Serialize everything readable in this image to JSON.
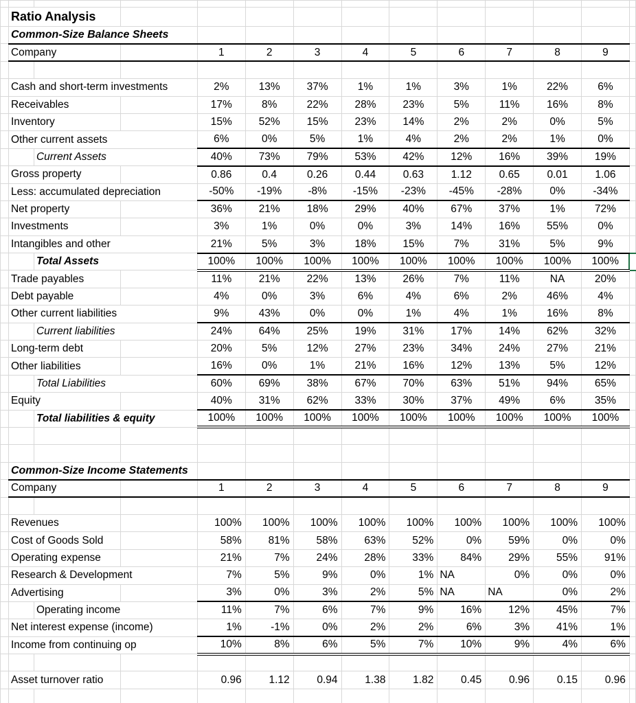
{
  "app": {
    "type": "spreadsheet",
    "sheet_name": "Ratio Analysis"
  },
  "colors": {
    "selection_border": "#217346",
    "gridline": "#d8d8d8",
    "section_border": "#000000",
    "background": "#ffffff",
    "text": "#000000"
  },
  "selected_cell": {
    "row_label": "Total Assets",
    "position": "right-of-company-9"
  },
  "companies": [
    "1",
    "2",
    "3",
    "4",
    "5",
    "6",
    "7",
    "8",
    "9"
  ],
  "grid_rows": [
    {
      "t": "blank",
      "h": 10
    },
    {
      "t": "title",
      "text": "Ratio Analysis",
      "w": 2,
      "h": 28
    },
    {
      "t": "section",
      "text": "Common-Size Balance Sheets"
    },
    {
      "t": "companies",
      "label": "Company",
      "w": 2,
      "v": [
        "1",
        "2",
        "3",
        "4",
        "5",
        "6",
        "7",
        "8",
        "9"
      ]
    },
    {
      "t": "blank"
    },
    {
      "t": "r",
      "label": "Cash and short-term investments",
      "a": "c",
      "v": [
        "2%",
        "13%",
        "37%",
        "1%",
        "1%",
        "3%",
        "1%",
        "22%",
        "6%"
      ]
    },
    {
      "t": "r",
      "label": "Receivables",
      "w": 2,
      "a": "c",
      "v": [
        "17%",
        "8%",
        "22%",
        "28%",
        "23%",
        "5%",
        "11%",
        "16%",
        "8%"
      ]
    },
    {
      "t": "r",
      "label": "Inventory",
      "w": 2,
      "a": "c",
      "v": [
        "15%",
        "52%",
        "15%",
        "23%",
        "14%",
        "2%",
        "2%",
        "0%",
        "5%"
      ]
    },
    {
      "t": "r",
      "label": "Other current assets",
      "a": "c",
      "bb": 1,
      "v": [
        "6%",
        "0%",
        "5%",
        "1%",
        "4%",
        "2%",
        "2%",
        "1%",
        "0%"
      ]
    },
    {
      "t": "r",
      "label": "Current Assets",
      "ls": "i",
      "a": "c",
      "bb": 1,
      "v": [
        "40%",
        "73%",
        "79%",
        "53%",
        "42%",
        "12%",
        "16%",
        "39%",
        "19%"
      ]
    },
    {
      "t": "r",
      "label": "Gross property",
      "w": 2,
      "a": "c",
      "v": [
        "0.86",
        "0.4",
        "0.26",
        "0.44",
        "0.63",
        "1.12",
        "0.65",
        "0.01",
        "1.06"
      ]
    },
    {
      "t": "r",
      "label": "Less: accumulated depreciation",
      "a": "c",
      "bb": 1,
      "v": [
        "-50%",
        "-19%",
        "-8%",
        "-15%",
        "-23%",
        "-45%",
        "-28%",
        "0%",
        "-34%"
      ]
    },
    {
      "t": "r",
      "label": "Net property",
      "w": 2,
      "a": "c",
      "v": [
        "36%",
        "21%",
        "18%",
        "29%",
        "40%",
        "67%",
        "37%",
        "1%",
        "72%"
      ]
    },
    {
      "t": "r",
      "label": "Investments",
      "w": 2,
      "a": "c",
      "v": [
        "3%",
        "1%",
        "0%",
        "0%",
        "3%",
        "14%",
        "16%",
        "55%",
        "0%"
      ]
    },
    {
      "t": "r",
      "label": "Intangibles and other",
      "a": "c",
      "bb": 1,
      "v": [
        "21%",
        "5%",
        "3%",
        "18%",
        "15%",
        "7%",
        "31%",
        "5%",
        "9%"
      ]
    },
    {
      "t": "r",
      "label": "Total Assets",
      "ls": "bi",
      "a": "c",
      "bb": 2,
      "sel": true,
      "v": [
        "100%",
        "100%",
        "100%",
        "100%",
        "100%",
        "100%",
        "100%",
        "100%",
        "100%"
      ]
    },
    {
      "t": "r",
      "label": "Trade payables",
      "w": 2,
      "a": "c",
      "v": [
        "11%",
        "21%",
        "22%",
        "13%",
        "26%",
        "7%",
        "11%",
        "NA",
        "20%"
      ]
    },
    {
      "t": "r",
      "label": "Debt payable",
      "w": 2,
      "a": "c",
      "v": [
        "4%",
        "0%",
        "3%",
        "6%",
        "4%",
        "6%",
        "2%",
        "46%",
        "4%"
      ]
    },
    {
      "t": "r",
      "label": "Other current liabilities",
      "a": "c",
      "bb": 1,
      "v": [
        "9%",
        "43%",
        "0%",
        "0%",
        "1%",
        "4%",
        "1%",
        "16%",
        "8%"
      ]
    },
    {
      "t": "r",
      "label": "Current liabilities",
      "ls": "i",
      "a": "c",
      "v": [
        "24%",
        "64%",
        "25%",
        "19%",
        "31%",
        "17%",
        "14%",
        "62%",
        "32%"
      ]
    },
    {
      "t": "r",
      "label": "Long-term debt",
      "w": 2,
      "a": "c",
      "v": [
        "20%",
        "5%",
        "12%",
        "27%",
        "23%",
        "34%",
        "24%",
        "27%",
        "21%"
      ]
    },
    {
      "t": "r",
      "label": "Other liabilities",
      "w": 2,
      "a": "c",
      "bb": 1,
      "v": [
        "16%",
        "0%",
        "1%",
        "21%",
        "16%",
        "12%",
        "13%",
        "5%",
        "12%"
      ]
    },
    {
      "t": "r",
      "label": "Total Liabilities",
      "ls": "i",
      "a": "c",
      "v": [
        "60%",
        "69%",
        "38%",
        "67%",
        "70%",
        "63%",
        "51%",
        "94%",
        "65%"
      ]
    },
    {
      "t": "r",
      "label": "Equity",
      "w": 2,
      "a": "c",
      "bb": 1,
      "v": [
        "40%",
        "31%",
        "62%",
        "33%",
        "30%",
        "37%",
        "49%",
        "6%",
        "35%"
      ]
    },
    {
      "t": "r",
      "label": "Total liabilities & equity",
      "ls": "bi",
      "a": "c",
      "bb": 2,
      "v": [
        "100%",
        "100%",
        "100%",
        "100%",
        "100%",
        "100%",
        "100%",
        "100%",
        "100%"
      ]
    },
    {
      "t": "blank"
    },
    {
      "t": "blank"
    },
    {
      "t": "section",
      "text": "Common-Size Income Statements"
    },
    {
      "t": "companies",
      "label": "Company",
      "w": 2,
      "v": [
        "1",
        "2",
        "3",
        "4",
        "5",
        "6",
        "7",
        "8",
        "9"
      ]
    },
    {
      "t": "blank"
    },
    {
      "t": "r",
      "label": "Revenues",
      "w": 2,
      "a": "r",
      "v": [
        "100%",
        "100%",
        "100%",
        "100%",
        "100%",
        "100%",
        "100%",
        "100%",
        "100%"
      ]
    },
    {
      "t": "r",
      "label": "Cost of Goods Sold",
      "w": 2,
      "a": "r",
      "v": [
        "58%",
        "81%",
        "58%",
        "63%",
        "52%",
        "0%",
        "59%",
        "0%",
        "0%"
      ]
    },
    {
      "t": "r",
      "label": "Operating expense",
      "w": 2,
      "a": "r",
      "v": [
        "21%",
        "7%",
        "24%",
        "28%",
        "33%",
        "84%",
        "29%",
        "55%",
        "91%"
      ]
    },
    {
      "t": "r",
      "label": "Research & Development",
      "a": "r",
      "v": [
        "7%",
        "5%",
        "9%",
        "0%",
        "1%",
        "NA",
        "0%",
        "0%",
        "0%"
      ]
    },
    {
      "t": "r",
      "label": "Advertising",
      "w": 2,
      "a": "r",
      "bb": 1,
      "v": [
        "3%",
        "0%",
        "3%",
        "2%",
        "5%",
        "NA",
        "NA",
        "0%",
        "2%"
      ]
    },
    {
      "t": "r",
      "label": "Operating income",
      "ls": "n",
      "a": "r",
      "v": [
        "11%",
        "7%",
        "6%",
        "7%",
        "9%",
        "16%",
        "12%",
        "45%",
        "7%"
      ]
    },
    {
      "t": "r",
      "label": "Net interest expense (income)",
      "a": "r",
      "bb": 1,
      "v": [
        "1%",
        "-1%",
        "0%",
        "2%",
        "2%",
        "6%",
        "3%",
        "41%",
        "1%"
      ]
    },
    {
      "t": "r",
      "label": "Income from continuing op",
      "a": "r",
      "bb": 2,
      "v": [
        "10%",
        "8%",
        "6%",
        "5%",
        "7%",
        "10%",
        "9%",
        "4%",
        "6%"
      ]
    },
    {
      "t": "blank"
    },
    {
      "t": "r",
      "label": "Asset turnover ratio",
      "w": 2,
      "a": "r",
      "v": [
        "0.96",
        "1.12",
        "0.94",
        "1.38",
        "1.82",
        "0.45",
        "0.96",
        "0.15",
        "0.96"
      ]
    },
    {
      "t": "blank"
    }
  ]
}
